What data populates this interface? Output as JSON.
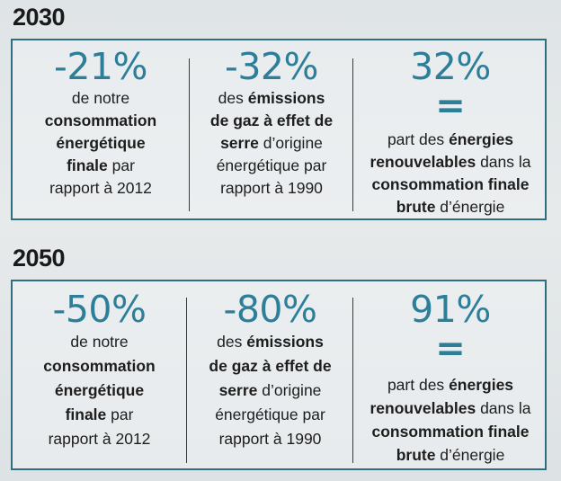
{
  "sections": [
    {
      "year": "2030",
      "cells": [
        {
          "value": "-21%",
          "lines": [
            [
              "de notre"
            ],
            [
              "<b>consommation</b>"
            ],
            [
              "<b>énergétique</b>"
            ],
            [
              "<b>finale</b> par"
            ],
            [
              "rapport à 2012"
            ]
          ]
        },
        {
          "value": "-32%",
          "lines": [
            [
              "des <b>émissions</b>"
            ],
            [
              "<b>de gaz à effet de</b>"
            ],
            [
              "<b>serre</b> d’origine"
            ],
            [
              "énergétique par"
            ],
            [
              "rapport à 1990"
            ]
          ]
        },
        {
          "value": "32%",
          "equals": "=",
          "lines": [
            [
              "part des <b>énergies</b>"
            ],
            [
              "<b>renouvelables</b> dans la"
            ],
            [
              "<b>consommation finale</b>"
            ],
            [
              "<b>brute</b> d’énergie"
            ]
          ]
        }
      ]
    },
    {
      "year": "2050",
      "cells": [
        {
          "value": "-50%",
          "lines": [
            [
              "de notre"
            ],
            [
              "<b>consommation</b>"
            ],
            [
              "<b>énergétique</b>"
            ],
            [
              "<b>finale</b> par"
            ],
            [
              "rapport à 2012"
            ]
          ]
        },
        {
          "value": "-80%",
          "lines": [
            [
              "des <b>émissions</b>"
            ],
            [
              "<b>de gaz à effet de</b>"
            ],
            [
              "<b>serre</b> d’origine"
            ],
            [
              "énergétique par"
            ],
            [
              "rapport à 1990"
            ]
          ]
        },
        {
          "value": "91%",
          "equals": "=",
          "lines": [
            [
              "part des <b>énergies</b>"
            ],
            [
              "<b>renouvelables</b> dans la"
            ],
            [
              "<b>consommation finale</b>"
            ],
            [
              "<b>brute</b> d’énergie"
            ]
          ]
        }
      ]
    }
  ],
  "colors": {
    "accent": "#2d7f99",
    "border": "#2e6e80",
    "text": "#1d1d1d"
  }
}
